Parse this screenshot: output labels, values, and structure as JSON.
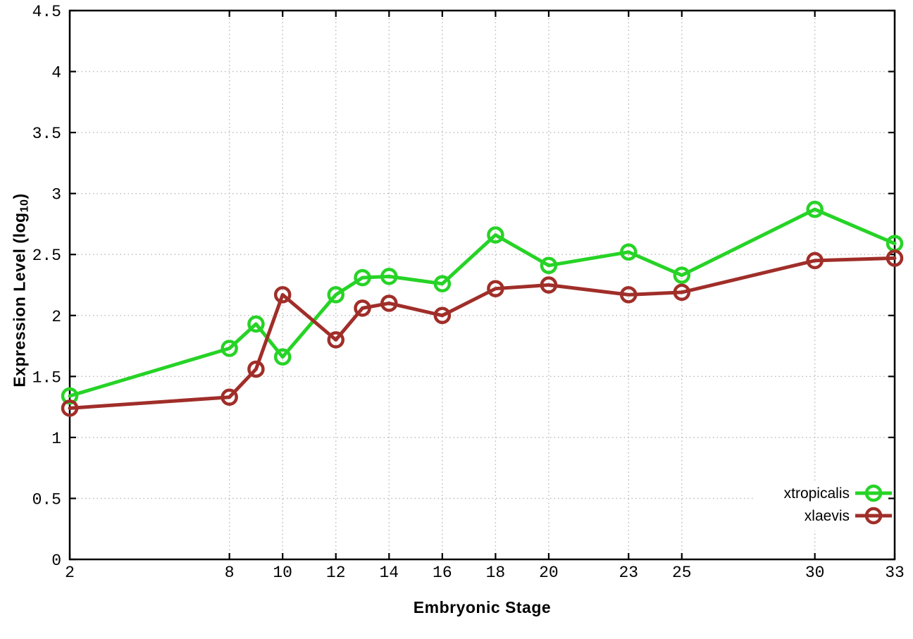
{
  "chart_data": {
    "type": "line",
    "title": "",
    "xlabel": "Embryonic Stage",
    "ylabel": {
      "main": "Expression Level (log",
      "subscript": "10",
      "suffix": ")"
    },
    "xlim": [
      2,
      33
    ],
    "ylim": [
      0,
      4.5
    ],
    "xticks": [
      2,
      8,
      10,
      12,
      14,
      16,
      18,
      20,
      23,
      25,
      30,
      33
    ],
    "yticks": [
      0,
      0.5,
      1,
      1.5,
      2,
      2.5,
      3,
      3.5,
      4,
      4.5
    ],
    "grid": true,
    "legend_position": "bottom-right",
    "x": [
      2,
      8,
      9,
      10,
      12,
      13,
      14,
      16,
      18,
      20,
      23,
      25,
      30,
      33
    ],
    "series": [
      {
        "name": "xtropicalis",
        "color": "#26d326",
        "marker": "open-circle",
        "values": [
          1.34,
          1.73,
          1.93,
          1.66,
          2.17,
          2.31,
          2.32,
          2.26,
          2.66,
          2.41,
          2.52,
          2.33,
          2.87,
          2.59
        ]
      },
      {
        "name": "xlaevis",
        "color": "#a02e29",
        "marker": "open-circle",
        "values": [
          1.24,
          1.33,
          1.56,
          2.17,
          1.8,
          2.06,
          2.1,
          2.0,
          2.22,
          2.25,
          2.17,
          2.19,
          2.45,
          2.47
        ]
      }
    ]
  },
  "style": {
    "background": "#ffffff",
    "grid_color": "#b8b8b8",
    "axis_color": "#000000",
    "text_color": "#000000"
  }
}
